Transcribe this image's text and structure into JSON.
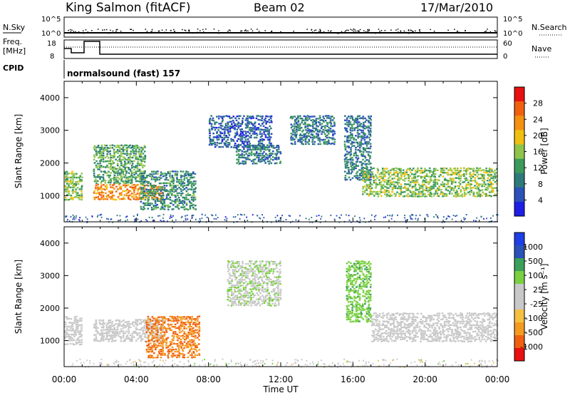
{
  "header": {
    "station": "King Salmon (fitACF)",
    "beam": "Beam 02",
    "date": "17/Mar/2010"
  },
  "top_panels": {
    "nsky_label": "N.Sky",
    "nsky_ticks": [
      "10^5",
      "10^0"
    ],
    "nsearch_label": "N.Search",
    "nsearch_ticks": [
      "10^5",
      "10^0"
    ],
    "freq_label_1": "Freq.",
    "freq_label_2": "[MHz]",
    "freq_ticks": [
      "18",
      "8"
    ],
    "nave_label": "Nave",
    "nave_ticks": [
      "60",
      "0"
    ],
    "cpid_label": "CPID",
    "cpid_text": "normalsound (fast) 157"
  },
  "time_axis": {
    "label": "Time UT",
    "ticks": [
      "00:00",
      "04:00",
      "08:00",
      "12:00",
      "16:00",
      "20:00",
      "00:00"
    ]
  },
  "colors": {
    "power_scale": [
      "#1e1ee6",
      "#2a52b8",
      "#2e7a7a",
      "#3c9a5a",
      "#8fc54a",
      "#f0c010",
      "#f59010",
      "#f06010",
      "#e81010"
    ],
    "velocity_scale": [
      "#e81010",
      "#f06010",
      "#f59a20",
      "#f5c040",
      "#c8c8c8",
      "#c8c8c8",
      "#7ad040",
      "#3ca05a",
      "#2a52b8",
      "#1e3ee6"
    ]
  },
  "chart_data": [
    {
      "type": "heatmap",
      "title": "Power",
      "ylabel": "Slant Range [km]",
      "yticks": [
        "1000",
        "2000",
        "3000",
        "4000"
      ],
      "ylim": [
        200,
        4500
      ],
      "xlim_hours": [
        0,
        24
      ],
      "colorbar_label": "Power [dB]",
      "colorbar_ticks": [
        "4",
        "8",
        "12",
        "16",
        "20",
        "24",
        "28"
      ],
      "regions": [
        {
          "t0": 0.0,
          "t1": 1.0,
          "r0": 900,
          "r1": 1800,
          "v": 14
        },
        {
          "t0": 1.6,
          "t1": 5.5,
          "r0": 900,
          "r1": 1400,
          "v": 22
        },
        {
          "t0": 1.6,
          "t1": 4.5,
          "r0": 1400,
          "r1": 2600,
          "v": 12
        },
        {
          "t0": 4.2,
          "t1": 7.3,
          "r0": 600,
          "r1": 1800,
          "v": 10
        },
        {
          "t0": 8.0,
          "t1": 11.5,
          "r0": 2500,
          "r1": 3500,
          "v": 6
        },
        {
          "t0": 9.5,
          "t1": 12.0,
          "r0": 2000,
          "r1": 2600,
          "v": 8
        },
        {
          "t0": 12.5,
          "t1": 15.0,
          "r0": 2600,
          "r1": 3500,
          "v": 8
        },
        {
          "t0": 15.5,
          "t1": 17.0,
          "r0": 1500,
          "r1": 3500,
          "v": 8
        },
        {
          "t0": 16.5,
          "t1": 24.0,
          "r0": 1000,
          "r1": 1900,
          "v": 14
        }
      ]
    },
    {
      "type": "heatmap",
      "title": "Velocity",
      "ylabel": "Slant Range [km]",
      "yticks": [
        "1000",
        "2000",
        "3000",
        "4000"
      ],
      "ylim": [
        200,
        4500
      ],
      "xlim_hours": [
        0,
        24
      ],
      "colorbar_label": "Velocity [m s⁻¹]",
      "colorbar_ticks": [
        "1000",
        "500",
        "100",
        "25",
        "-25",
        "-100",
        "-500",
        "-1000"
      ],
      "regions": [
        {
          "t0": 0.0,
          "t1": 1.0,
          "r0": 900,
          "r1": 1800,
          "v": 0
        },
        {
          "t0": 1.6,
          "t1": 5.5,
          "r0": 1000,
          "r1": 1700,
          "v": 0
        },
        {
          "t0": 4.5,
          "t1": 7.5,
          "r0": 500,
          "r1": 1800,
          "v": -300
        },
        {
          "t0": 9.0,
          "t1": 12.0,
          "r0": 2100,
          "r1": 3500,
          "v": 20
        },
        {
          "t0": 15.6,
          "t1": 17.0,
          "r0": 1600,
          "r1": 3500,
          "v": 50
        },
        {
          "t0": 17.0,
          "t1": 24.0,
          "r0": 1000,
          "r1": 1900,
          "v": 0
        }
      ]
    }
  ]
}
